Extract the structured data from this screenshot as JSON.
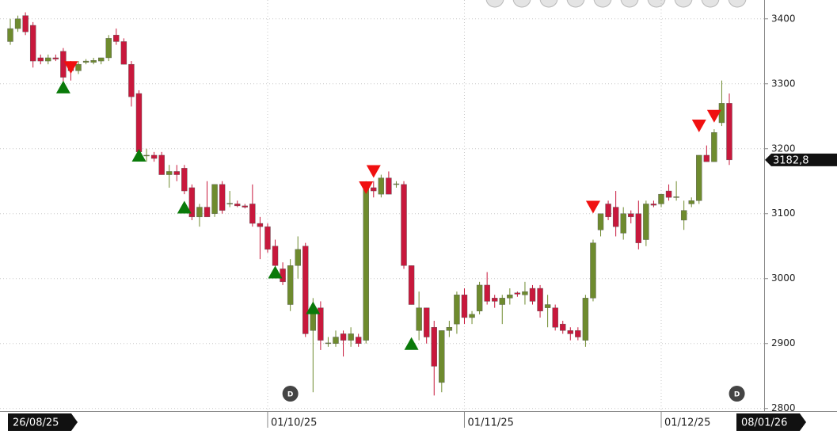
{
  "chart_data": {
    "type": "candlestick",
    "ylim": [
      2796,
      3429
    ],
    "yticks": [
      2800,
      2900,
      3000,
      3100,
      3200,
      3300,
      3400
    ],
    "grid": true,
    "up_color": "#6e8b2e",
    "down_color": "#c8183c",
    "categories": [
      "26/08/25",
      null,
      null,
      null,
      null,
      null,
      null,
      null,
      null,
      null,
      null,
      null,
      null,
      null,
      null,
      null,
      null,
      null,
      null,
      null,
      null,
      null,
      null,
      null,
      null,
      null,
      null,
      null,
      null,
      null,
      null,
      null,
      null,
      null,
      "01/10/25",
      null,
      null,
      null,
      null,
      null,
      null,
      null,
      null,
      null,
      null,
      null,
      null,
      null,
      null,
      null,
      null,
      null,
      null,
      null,
      null,
      null,
      null,
      null,
      null,
      null,
      "01/11/25",
      null,
      null,
      null,
      null,
      null,
      null,
      null,
      null,
      null,
      null,
      null,
      null,
      null,
      null,
      null,
      null,
      null,
      null,
      null,
      null,
      null,
      null,
      null,
      null,
      null,
      "01/12/25",
      null,
      null,
      null,
      null,
      null,
      null,
      null,
      null,
      "08/01/26"
    ],
    "ohlc": [
      [
        3365,
        3400,
        3360,
        3385
      ],
      [
        3385,
        3405,
        3380,
        3400
      ],
      [
        3405,
        3410,
        3375,
        3380
      ],
      [
        3390,
        3395,
        3325,
        3335
      ],
      [
        3340,
        3345,
        3330,
        3335
      ],
      [
        3335,
        3345,
        3330,
        3340
      ],
      [
        3340,
        3345,
        3335,
        3338
      ],
      [
        3350,
        3355,
        3300,
        3310
      ],
      [
        3330,
        3335,
        3305,
        3320
      ],
      [
        3320,
        3335,
        3315,
        3330
      ],
      [
        3333,
        3338,
        3330,
        3335
      ],
      [
        3333,
        3340,
        3330,
        3336
      ],
      [
        3335,
        3340,
        3330,
        3340
      ],
      [
        3340,
        3375,
        3335,
        3370
      ],
      [
        3375,
        3385,
        3360,
        3365
      ],
      [
        3365,
        3370,
        3330,
        3330
      ],
      [
        3330,
        3335,
        3265,
        3280
      ],
      [
        3285,
        3290,
        3195,
        3195
      ],
      [
        3190,
        3200,
        3180,
        3190
      ],
      [
        3190,
        3195,
        3180,
        3185
      ],
      [
        3190,
        3195,
        3160,
        3160
      ],
      [
        3160,
        3175,
        3140,
        3165
      ],
      [
        3165,
        3175,
        3150,
        3160
      ],
      [
        3170,
        3175,
        3130,
        3135
      ],
      [
        3140,
        3145,
        3090,
        3095
      ],
      [
        3095,
        3115,
        3080,
        3110
      ],
      [
        3110,
        3150,
        3100,
        3095
      ],
      [
        3100,
        3145,
        3095,
        3145
      ],
      [
        3145,
        3150,
        3100,
        3105
      ],
      [
        3115,
        3135,
        3110,
        3116
      ],
      [
        3115,
        3120,
        3110,
        3112
      ],
      [
        3112,
        3115,
        3108,
        3110
      ],
      [
        3115,
        3145,
        3080,
        3085
      ],
      [
        3085,
        3095,
        3030,
        3080
      ],
      [
        3080,
        3085,
        3040,
        3045
      ],
      [
        3050,
        3060,
        3010,
        3020
      ],
      [
        3015,
        3025,
        2990,
        2995
      ],
      [
        2960,
        3030,
        2950,
        3020
      ],
      [
        3020,
        3065,
        3000,
        3045
      ],
      [
        3050,
        3055,
        2910,
        2915
      ],
      [
        2920,
        2970,
        2825,
        2950
      ],
      [
        2955,
        2965,
        2890,
        2905
      ],
      [
        2900,
        2910,
        2895,
        2901
      ],
      [
        2900,
        2920,
        2895,
        2910
      ],
      [
        2915,
        2920,
        2880,
        2905
      ],
      [
        2905,
        2925,
        2895,
        2915
      ],
      [
        2910,
        2915,
        2895,
        2900
      ],
      [
        2905,
        3150,
        2900,
        3140
      ],
      [
        3140,
        3150,
        3125,
        3135
      ],
      [
        3130,
        3160,
        3125,
        3155
      ],
      [
        3155,
        3165,
        3130,
        3130
      ],
      [
        3145,
        3150,
        3140,
        3146
      ],
      [
        3145,
        3150,
        3015,
        3020
      ],
      [
        3020,
        3020,
        2960,
        2960
      ],
      [
        2920,
        2980,
        2905,
        2955
      ],
      [
        2955,
        2955,
        2900,
        2910
      ],
      [
        2925,
        2935,
        2820,
        2865
      ],
      [
        2840,
        2920,
        2825,
        2920
      ],
      [
        2920,
        2935,
        2910,
        2925
      ],
      [
        2930,
        2980,
        2915,
        2975
      ],
      [
        2975,
        2985,
        2930,
        2940
      ],
      [
        2940,
        2950,
        2930,
        2945
      ],
      [
        2950,
        2995,
        2945,
        2990
      ],
      [
        2990,
        3010,
        2960,
        2965
      ],
      [
        2970,
        2975,
        2955,
        2965
      ],
      [
        2960,
        2975,
        2930,
        2970
      ],
      [
        2970,
        2985,
        2960,
        2975
      ],
      [
        2978,
        2980,
        2972,
        2976
      ],
      [
        2975,
        2995,
        2960,
        2980
      ],
      [
        2985,
        2990,
        2960,
        2965
      ],
      [
        2985,
        2990,
        2940,
        2950
      ],
      [
        2955,
        2975,
        2925,
        2960
      ],
      [
        2955,
        2960,
        2920,
        2925
      ],
      [
        2930,
        2935,
        2915,
        2920
      ],
      [
        2920,
        2925,
        2905,
        2915
      ],
      [
        2920,
        2925,
        2905,
        2910
      ],
      [
        2905,
        2975,
        2895,
        2970
      ],
      [
        2970,
        3060,
        2965,
        3055
      ],
      [
        3075,
        3100,
        3065,
        3100
      ],
      [
        3115,
        3120,
        3090,
        3095
      ],
      [
        3110,
        3135,
        3065,
        3080
      ],
      [
        3070,
        3110,
        3060,
        3100
      ],
      [
        3100,
        3105,
        3085,
        3095
      ],
      [
        3100,
        3120,
        3045,
        3055
      ],
      [
        3060,
        3120,
        3050,
        3115
      ],
      [
        3115,
        3120,
        3110,
        3113
      ],
      [
        3115,
        3130,
        3110,
        3130
      ],
      [
        3135,
        3145,
        3120,
        3125
      ],
      [
        3125,
        3150,
        3120,
        3126
      ],
      [
        3090,
        3120,
        3075,
        3105
      ],
      [
        3115,
        3125,
        3110,
        3120
      ],
      [
        3120,
        3190,
        3115,
        3190
      ],
      [
        3190,
        3205,
        3180,
        3180
      ],
      [
        3180,
        3230,
        3180,
        3225
      ],
      [
        3240,
        3305,
        3235,
        3270
      ],
      [
        3270,
        3285,
        3175,
        3182.8
      ]
    ],
    "signals": [
      {
        "x": 7,
        "value": 3295,
        "kind": "buy"
      },
      {
        "x": 17,
        "value": 3190,
        "kind": "buy"
      },
      {
        "x": 23,
        "value": 3110,
        "kind": "buy"
      },
      {
        "x": 35,
        "value": 3010,
        "kind": "buy"
      },
      {
        "x": 40,
        "value": 2955,
        "kind": "buy"
      },
      {
        "x": 53,
        "value": 2900,
        "kind": "buy"
      },
      {
        "x": 8,
        "value": 3325,
        "kind": "sell"
      },
      {
        "x": 47,
        "value": 3140,
        "kind": "sell"
      },
      {
        "x": 48,
        "value": 3165,
        "kind": "sell"
      },
      {
        "x": 77,
        "value": 3110,
        "kind": "sell"
      },
      {
        "x": 91,
        "value": 3235,
        "kind": "sell"
      },
      {
        "x": 93,
        "value": 3250,
        "kind": "sell"
      }
    ],
    "events": [
      {
        "x": 37,
        "label": "D"
      },
      {
        "x": 96,
        "label": "D"
      }
    ],
    "last_price": {
      "value": 3182.8,
      "label": "3182,8"
    }
  }
}
